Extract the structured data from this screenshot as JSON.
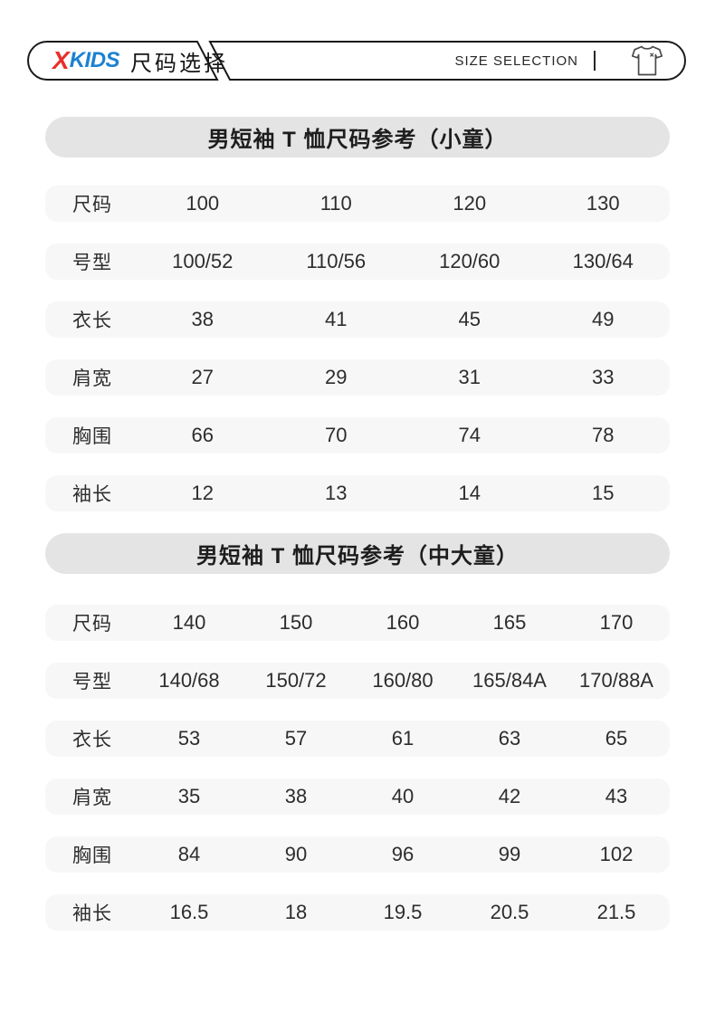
{
  "header": {
    "logo_x": "X",
    "logo_kids": "KIDS",
    "logo_cn": "尺码选择",
    "right_label": "SIZE SELECTION",
    "icon": "tshirt-outline-icon",
    "colors": {
      "logo_x": "#e8302a",
      "logo_kids": "#1b82d2",
      "outline": "#1a1a1a"
    }
  },
  "colors": {
    "banner_bg": "#e4e4e4",
    "row_bg": "#f7f7f7",
    "text": "#2d2d2d"
  },
  "tables": [
    {
      "title": "男短袖 T 恤尺码参考（小童）",
      "rows": [
        {
          "label": "尺码",
          "values": [
            "100",
            "110",
            "120",
            "130"
          ]
        },
        {
          "label": "号型",
          "values": [
            "100/52",
            "110/56",
            "120/60",
            "130/64"
          ]
        },
        {
          "label": "衣长",
          "values": [
            "38",
            "41",
            "45",
            "49"
          ]
        },
        {
          "label": "肩宽",
          "values": [
            "27",
            "29",
            "31",
            "33"
          ]
        },
        {
          "label": "胸围",
          "values": [
            "66",
            "70",
            "74",
            "78"
          ]
        },
        {
          "label": "袖长",
          "values": [
            "12",
            "13",
            "14",
            "15"
          ]
        }
      ]
    },
    {
      "title": "男短袖 T 恤尺码参考（中大童）",
      "rows": [
        {
          "label": "尺码",
          "values": [
            "140",
            "150",
            "160",
            "165",
            "170"
          ]
        },
        {
          "label": "号型",
          "values": [
            "140/68",
            "150/72",
            "160/80",
            "165/84A",
            "170/88A"
          ]
        },
        {
          "label": "衣长",
          "values": [
            "53",
            "57",
            "61",
            "63",
            "65"
          ]
        },
        {
          "label": "肩宽",
          "values": [
            "35",
            "38",
            "40",
            "42",
            "43"
          ]
        },
        {
          "label": "胸围",
          "values": [
            "84",
            "90",
            "96",
            "99",
            "102"
          ]
        },
        {
          "label": "袖长",
          "values": [
            "16.5",
            "18",
            "19.5",
            "20.5",
            "21.5"
          ]
        }
      ]
    }
  ]
}
